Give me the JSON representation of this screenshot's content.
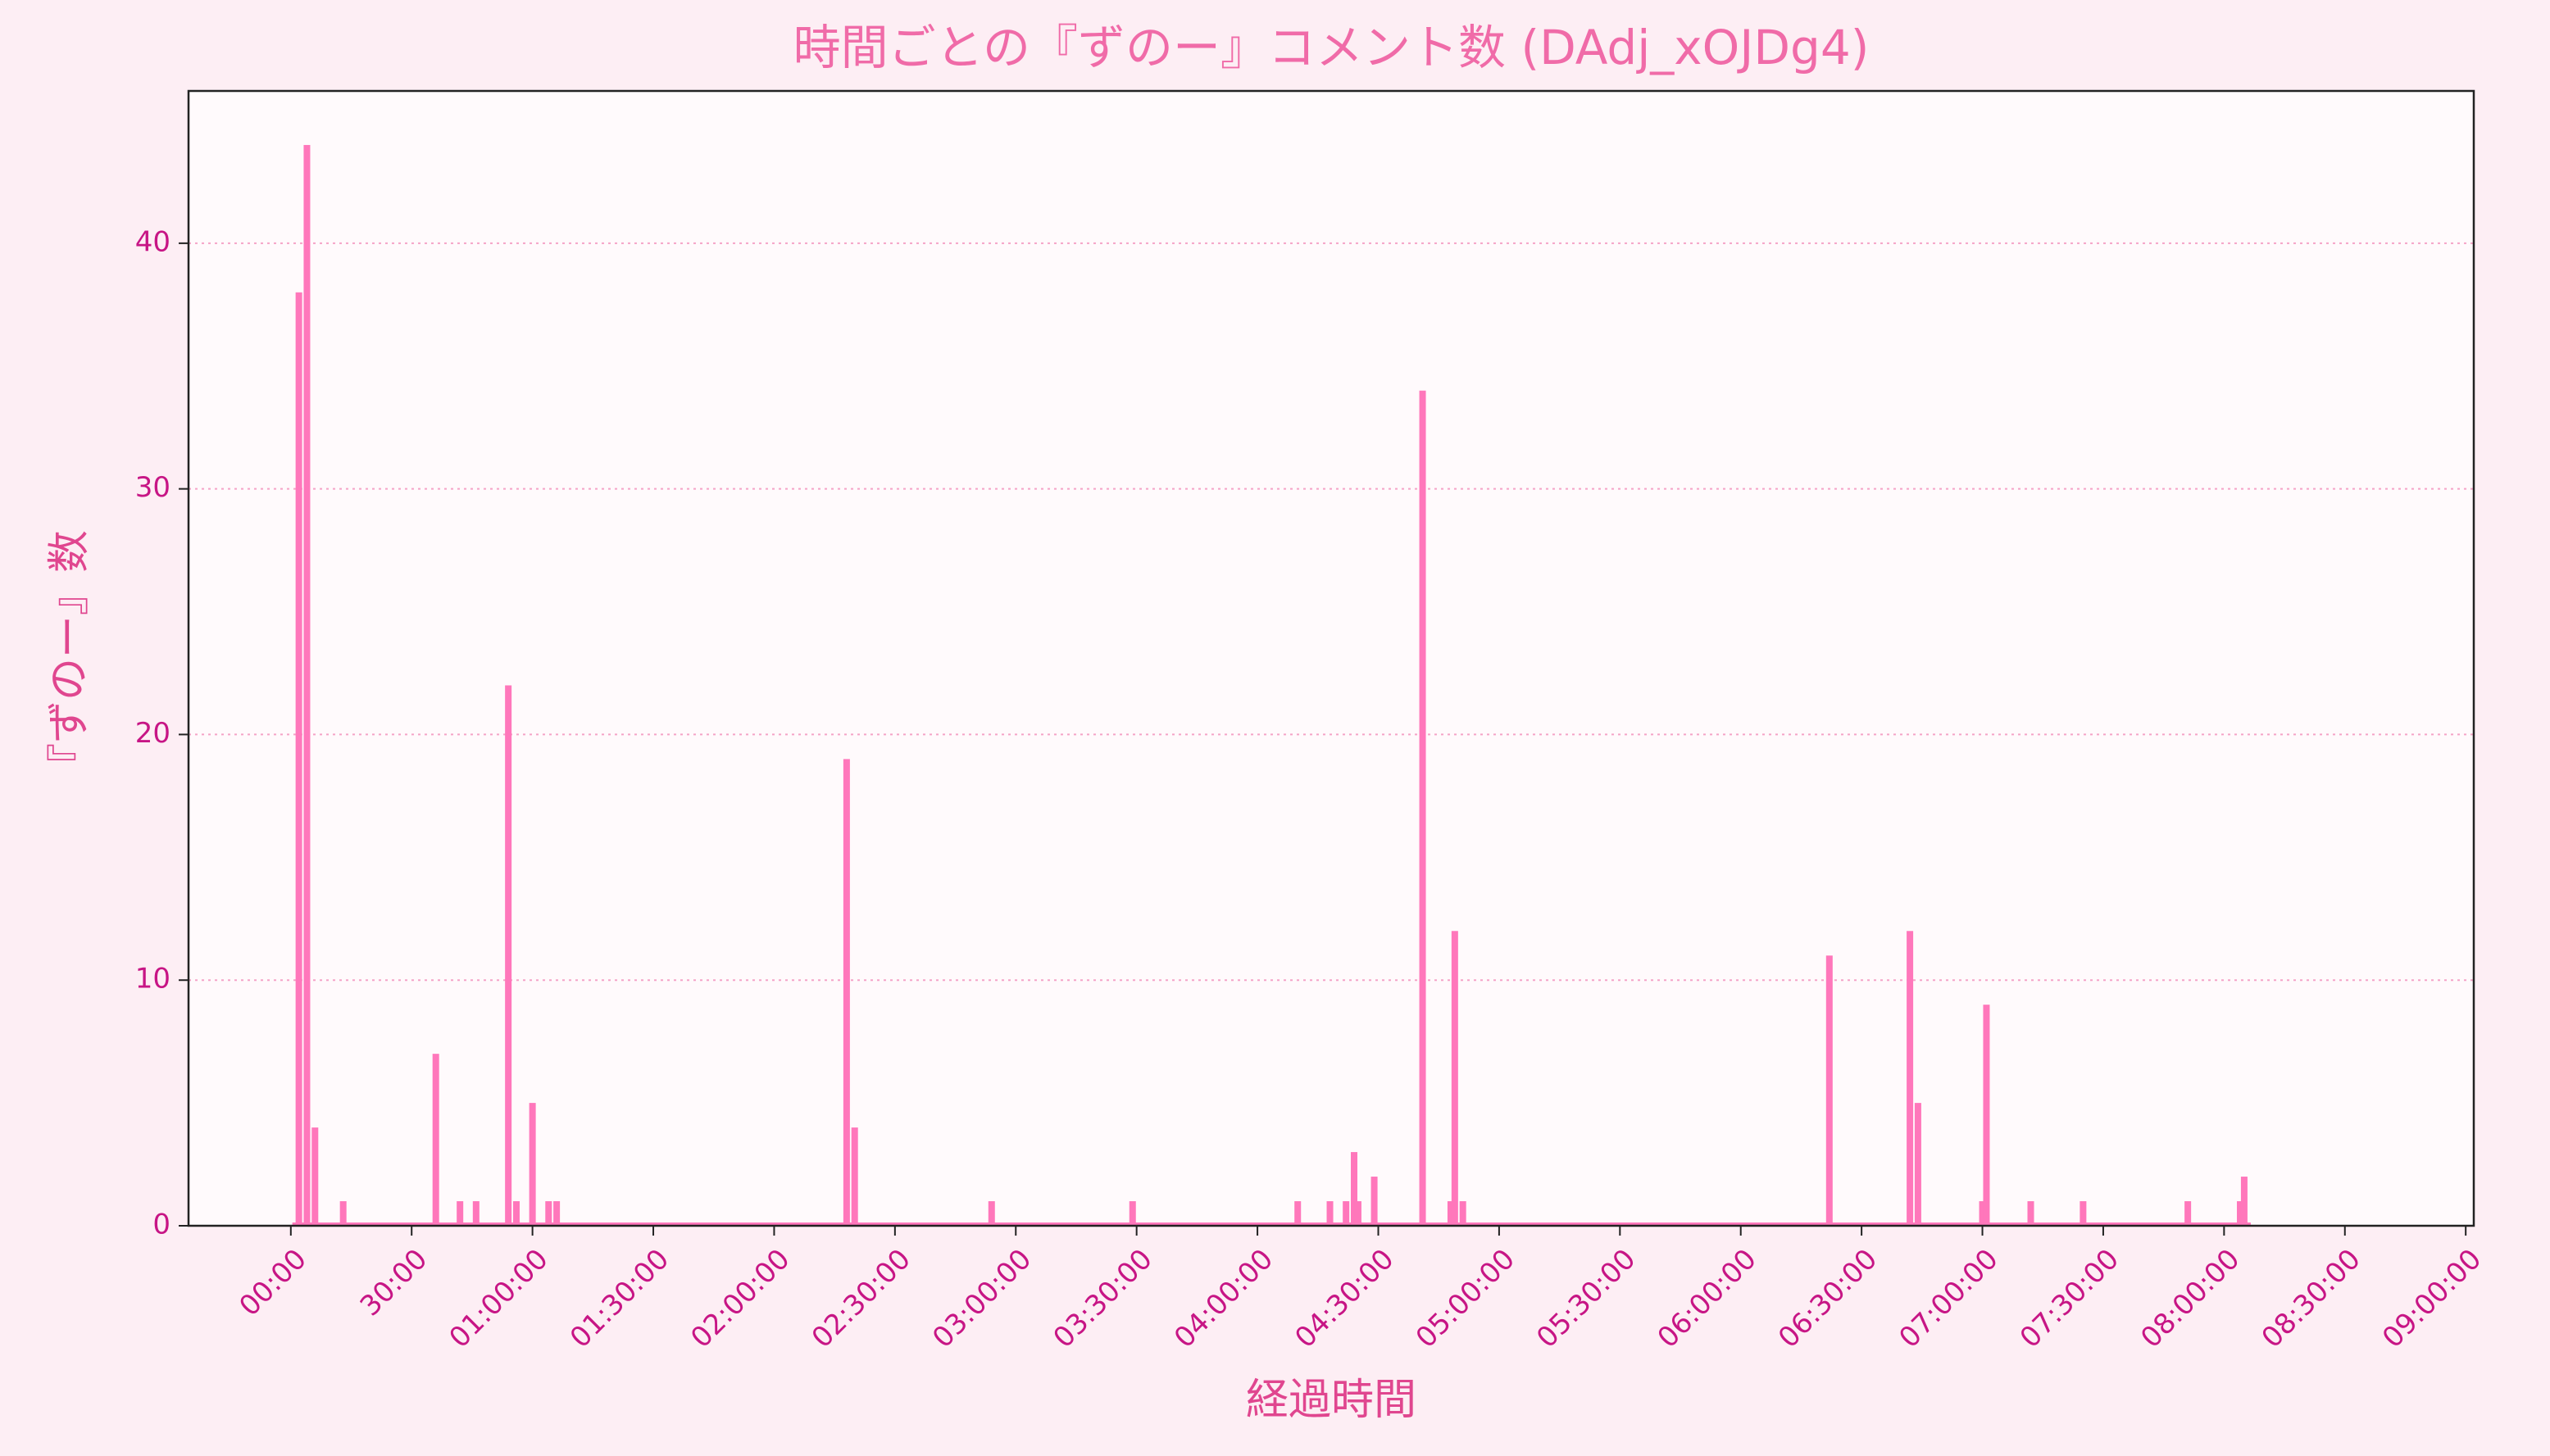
{
  "chart_data": {
    "type": "bar",
    "title": "時間ごとの『ずのー』コメント数 (DAdj_xOJDg4)",
    "xlabel": "経過時間",
    "ylabel": "『ずのー』数",
    "x": [
      2,
      4,
      6,
      13,
      36,
      42,
      46,
      54,
      56,
      60,
      64,
      66,
      138,
      140,
      174,
      209,
      250,
      258,
      262,
      264,
      265,
      269,
      281,
      288,
      289,
      291,
      382,
      402,
      404,
      420,
      421,
      432,
      445,
      471,
      484,
      485
    ],
    "values": [
      38,
      44,
      4,
      1,
      7,
      1,
      1,
      22,
      1,
      5,
      1,
      1,
      19,
      4,
      1,
      1,
      1,
      1,
      1,
      3,
      1,
      2,
      34,
      1,
      12,
      1,
      11,
      12,
      5,
      1,
      9,
      1,
      1,
      1,
      1,
      2
    ],
    "color": "#ff77bb",
    "xlim": [
      -25.4,
      542
    ],
    "ylim": [
      0,
      46.2
    ],
    "yticks": [
      0,
      10,
      20,
      30,
      40
    ],
    "xticks": [
      {
        "value": 0,
        "label": "00:00"
      },
      {
        "value": 30,
        "label": "30:00"
      },
      {
        "value": 60,
        "label": "01:00:00"
      },
      {
        "value": 90,
        "label": "01:30:00"
      },
      {
        "value": 120,
        "label": "02:00:00"
      },
      {
        "value": 150,
        "label": "02:30:00"
      },
      {
        "value": 180,
        "label": "03:00:00"
      },
      {
        "value": 210,
        "label": "03:30:00"
      },
      {
        "value": 240,
        "label": "04:00:00"
      },
      {
        "value": 270,
        "label": "04:30:00"
      },
      {
        "value": 300,
        "label": "05:00:00"
      },
      {
        "value": 330,
        "label": "05:30:00"
      },
      {
        "value": 360,
        "label": "06:00:00"
      },
      {
        "value": 390,
        "label": "06:30:00"
      },
      {
        "value": 420,
        "label": "07:00:00"
      },
      {
        "value": 450,
        "label": "07:30:00"
      },
      {
        "value": 480,
        "label": "08:00:00"
      },
      {
        "value": 510,
        "label": "08:30:00"
      },
      {
        "value": 540,
        "label": "09:00:00"
      }
    ],
    "grid": true
  }
}
